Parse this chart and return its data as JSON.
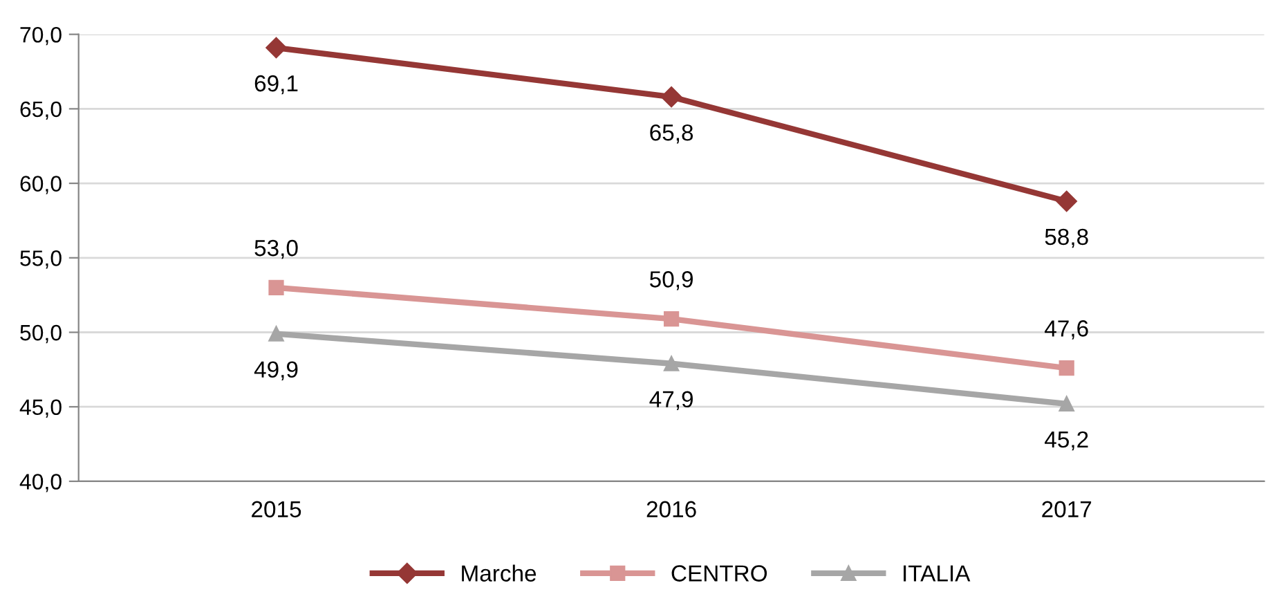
{
  "chart_data": {
    "type": "line",
    "categories": [
      "2015",
      "2016",
      "2017"
    ],
    "series": [
      {
        "name": "Marche",
        "color": "#953735",
        "marker": "diamond",
        "values": [
          69.1,
          65.8,
          58.8
        ],
        "value_labels": [
          "69,1",
          "65,8",
          "58,8"
        ]
      },
      {
        "name": "CENTRO",
        "color": "#d99594",
        "marker": "square",
        "values": [
          53.0,
          50.9,
          47.6
        ],
        "value_labels": [
          "53,0",
          "50,9",
          "47,6"
        ]
      },
      {
        "name": "ITALIA",
        "color": "#a6a6a6",
        "marker": "triangle",
        "values": [
          49.9,
          47.9,
          45.2
        ],
        "value_labels": [
          "49,9",
          "47,9",
          "45,2"
        ]
      }
    ],
    "ylim": [
      40,
      70
    ],
    "yticks": [
      {
        "value": 40,
        "label": "40,0"
      },
      {
        "value": 45,
        "label": "45,0"
      },
      {
        "value": 50,
        "label": "50,0"
      },
      {
        "value": 55,
        "label": "55,0"
      },
      {
        "value": 60,
        "label": "60,0"
      },
      {
        "value": 65,
        "label": "65,0"
      },
      {
        "value": 70,
        "label": "70,0"
      }
    ],
    "grid": "y",
    "legend": "bottom",
    "line_style": "solid"
  }
}
